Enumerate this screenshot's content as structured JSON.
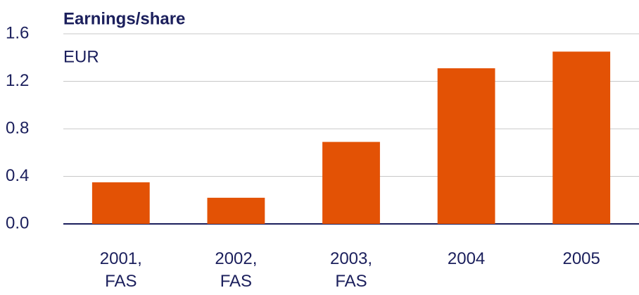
{
  "chart_data": {
    "type": "bar",
    "title": "Earnings/share",
    "unit": "EUR",
    "categories": [
      "2001, FAS",
      "2002, FAS",
      "2003, FAS",
      "2004",
      "2005"
    ],
    "values": [
      0.35,
      0.22,
      0.69,
      1.31,
      1.45
    ],
    "color": "#e35205",
    "ylim": [
      0,
      1.6
    ],
    "yticks": [
      {
        "value": 0,
        "label": "0.0"
      },
      0.4,
      0.8,
      1.2,
      1.6
    ],
    "grid": true
  }
}
